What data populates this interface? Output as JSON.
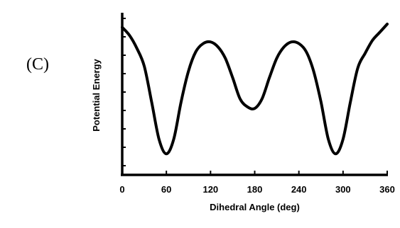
{
  "panel_label": "(C)",
  "chart_data": {
    "type": "line",
    "title": "",
    "xlabel": "Dihedral Angle (deg)",
    "ylabel": "Potential Energy",
    "xlim": [
      0,
      360
    ],
    "ylim": [
      0,
      1
    ],
    "x_ticks": [
      0,
      60,
      120,
      180,
      240,
      300,
      360
    ],
    "x_tick_labels": [
      "0",
      "60",
      "120",
      "180",
      "240",
      "300",
      "360"
    ],
    "y_ticks_labeled": false,
    "grid": false,
    "series": [
      {
        "x": [
          0,
          10,
          20,
          30,
          40,
          50,
          60,
          70,
          80,
          90,
          100,
          110,
          120,
          130,
          140,
          150,
          160,
          170,
          180,
          190,
          200,
          210,
          220,
          230,
          240,
          250,
          260,
          270,
          280,
          290,
          300,
          310,
          320,
          330,
          340,
          350,
          360
        ],
        "y": [
          0.91,
          0.86,
          0.78,
          0.67,
          0.45,
          0.22,
          0.13,
          0.22,
          0.45,
          0.64,
          0.76,
          0.81,
          0.82,
          0.79,
          0.72,
          0.6,
          0.47,
          0.42,
          0.41,
          0.47,
          0.6,
          0.72,
          0.79,
          0.82,
          0.81,
          0.76,
          0.64,
          0.45,
          0.22,
          0.13,
          0.22,
          0.45,
          0.66,
          0.75,
          0.83,
          0.88,
          0.93
        ]
      }
    ]
  }
}
